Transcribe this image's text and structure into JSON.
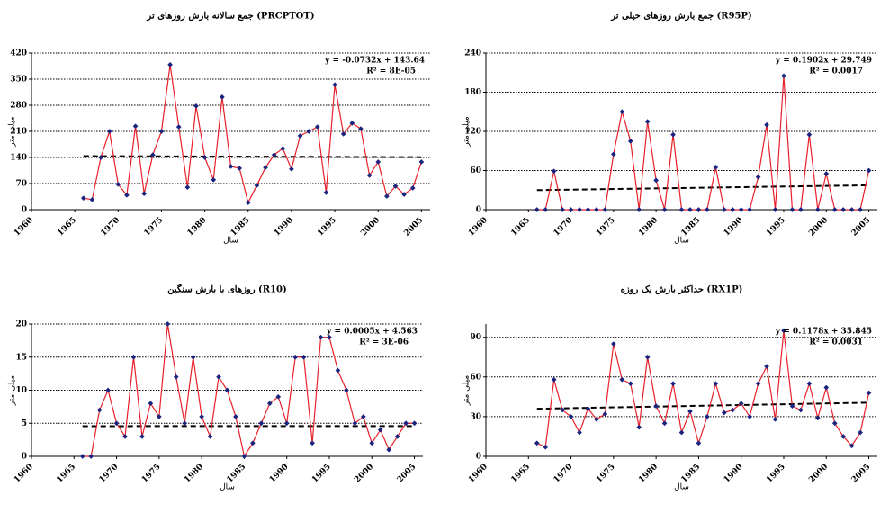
{
  "chart_data": [
    {
      "type": "line",
      "title": "جمع سالانه بارش روزهای تر (PRCPTOT)",
      "x_label": "سال",
      "y_label": "میلی متر",
      "x": [
        1966,
        1967,
        1968,
        1969,
        1970,
        1971,
        1972,
        1973,
        1974,
        1975,
        1976,
        1977,
        1978,
        1979,
        1980,
        1981,
        1982,
        1983,
        1984,
        1985,
        1986,
        1987,
        1988,
        1989,
        1990,
        1991,
        1992,
        1993,
        1994,
        1995,
        1996,
        1997,
        1998,
        1999,
        2000,
        2001,
        2002,
        2003,
        2004,
        2005
      ],
      "xlim": [
        1960,
        2006
      ],
      "xticks": [
        1960,
        1965,
        1970,
        1975,
        1980,
        1985,
        1990,
        1995,
        2000,
        2005
      ],
      "ylim": [
        0,
        420
      ],
      "yticks": [
        0,
        70,
        140,
        210,
        280,
        350,
        420
      ],
      "grid": true,
      "series": [
        {
          "name": "PRCPTOT",
          "color": "#e8202a",
          "marker_color": "#1a237e",
          "values": [
            31,
            27,
            140,
            210,
            68,
            39,
            224,
            43,
            147,
            210,
            389,
            222,
            60,
            278,
            140,
            80,
            302,
            116,
            111,
            19,
            65,
            113,
            147,
            164,
            109,
            198,
            210,
            222,
            46,
            335,
            203,
            232,
            217,
            92,
            128,
            36,
            63,
            41,
            58,
            128
          ]
        }
      ],
      "trend": {
        "slope": -0.0732,
        "intercept": 143.64
      },
      "equation": "y = -0.0732x + 143.64",
      "r2": "R² = 8E-05"
    },
    {
      "type": "line",
      "title": "جمع بارش روزهای خیلی تر (R95P)",
      "x_label": "سال",
      "y_label": "میلی متر",
      "x": [
        1966,
        1967,
        1968,
        1969,
        1970,
        1971,
        1972,
        1973,
        1974,
        1975,
        1976,
        1977,
        1978,
        1979,
        1980,
        1981,
        1982,
        1983,
        1984,
        1985,
        1986,
        1987,
        1988,
        1989,
        1990,
        1991,
        1992,
        1993,
        1994,
        1995,
        1996,
        1997,
        1998,
        1999,
        2000,
        2001,
        2002,
        2003,
        2004,
        2005
      ],
      "xlim": [
        1960,
        2006
      ],
      "xticks": [
        1960,
        1965,
        1970,
        1975,
        1980,
        1985,
        1990,
        1995,
        2000,
        2005
      ],
      "ylim": [
        0,
        240
      ],
      "yticks": [
        0,
        60,
        120,
        180,
        240
      ],
      "grid": true,
      "series": [
        {
          "name": "R95P",
          "color": "#e8202a",
          "marker_color": "#1a237e",
          "values": [
            0,
            0,
            59,
            0,
            0,
            0,
            0,
            0,
            0,
            85,
            150,
            105,
            0,
            135,
            45,
            0,
            115,
            0,
            0,
            0,
            0,
            65,
            0,
            0,
            0,
            0,
            50,
            130,
            0,
            205,
            0,
            0,
            115,
            0,
            55,
            0,
            0,
            0,
            0,
            60
          ]
        }
      ],
      "trend": {
        "slope": 0.1902,
        "intercept": 29.749
      },
      "equation": "y = 0.1902x + 29.749",
      "r2": "R² = 0.0017"
    },
    {
      "type": "line",
      "title": "روزهای با بارش سنگین (R10)",
      "x_label": "سال",
      "y_label": "میلی متر",
      "x": [
        1966,
        1967,
        1968,
        1969,
        1970,
        1971,
        1972,
        1973,
        1974,
        1975,
        1976,
        1977,
        1978,
        1979,
        1980,
        1981,
        1982,
        1983,
        1984,
        1985,
        1986,
        1987,
        1988,
        1989,
        1990,
        1991,
        1992,
        1993,
        1994,
        1995,
        1996,
        1997,
        1998,
        1999,
        2000,
        2001,
        2002,
        2003,
        2004,
        2005
      ],
      "xlim": [
        1960,
        2006
      ],
      "xticks": [
        1960,
        1965,
        1970,
        1975,
        1980,
        1985,
        1990,
        1995,
        2000,
        2005
      ],
      "ylim": [
        0,
        20
      ],
      "yticks": [
        0,
        5,
        10,
        15,
        20
      ],
      "grid": true,
      "series": [
        {
          "name": "R10",
          "color": "#e8202a",
          "marker_color": "#1a237e",
          "values": [
            0,
            0,
            7,
            10,
            5,
            3,
            15,
            3,
            8,
            6,
            20,
            12,
            5,
            15,
            6,
            3,
            12,
            10,
            6,
            0,
            2,
            5,
            8,
            9,
            5,
            15,
            15,
            2,
            18,
            18,
            13,
            10,
            5,
            6,
            2,
            4,
            1,
            3,
            5,
            5
          ]
        }
      ],
      "trend": {
        "slope": 0.0005,
        "intercept": 4.563
      },
      "equation": "y = 0.0005x + 4.563",
      "r2": "R² = 3E-06"
    },
    {
      "type": "line",
      "title": "حداکثر بارش یک روزه (RX1P)",
      "x_label": "سال",
      "y_label": "میلی متر",
      "x": [
        1966,
        1967,
        1968,
        1969,
        1970,
        1971,
        1972,
        1973,
        1974,
        1975,
        1976,
        1977,
        1978,
        1979,
        1980,
        1981,
        1982,
        1983,
        1984,
        1985,
        1986,
        1987,
        1988,
        1989,
        1990,
        1991,
        1992,
        1993,
        1994,
        1995,
        1996,
        1997,
        1998,
        1999,
        2000,
        2001,
        2002,
        2003,
        2004,
        2005
      ],
      "xlim": [
        1960,
        2006
      ],
      "xticks": [
        1960,
        1965,
        1970,
        1975,
        1980,
        1985,
        1990,
        1995,
        2000,
        2005
      ],
      "ylim": [
        0,
        100
      ],
      "yticks": [
        0,
        30,
        60,
        90
      ],
      "grid": true,
      "series": [
        {
          "name": "RX1P",
          "color": "#e8202a",
          "marker_color": "#1a237e",
          "values": [
            10,
            7,
            58,
            35,
            30,
            18,
            36,
            28,
            32,
            85,
            58,
            55,
            22,
            75,
            38,
            25,
            55,
            18,
            34,
            10,
            30,
            55,
            33,
            35,
            40,
            30,
            55,
            68,
            28,
            95,
            38,
            35,
            55,
            29,
            52,
            25,
            15,
            8,
            18,
            48
          ]
        }
      ],
      "trend": {
        "slope": 0.1178,
        "intercept": 35.845
      },
      "equation": "y = 0.1178x + 35.845",
      "r2": "R² = 0.0031"
    }
  ]
}
